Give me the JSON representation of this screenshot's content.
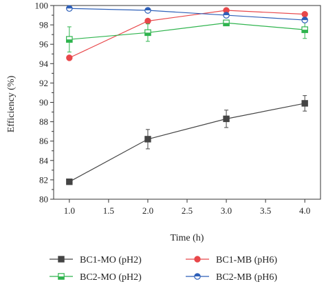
{
  "chart_data": {
    "type": "line",
    "xlabel": "Time (h)",
    "ylabel": "Efficiency (%)",
    "xlim": [
      0.8,
      4.2
    ],
    "ylim": [
      80,
      100
    ],
    "xticks": [
      1.0,
      1.5,
      2.0,
      2.5,
      3.0,
      3.5,
      4.0
    ],
    "yticks": [
      80,
      82,
      84,
      86,
      88,
      90,
      92,
      94,
      96,
      98,
      100
    ],
    "xtick_labels": [
      "1.0",
      "1.5",
      "2.0",
      "2.5",
      "3.0",
      "3.5",
      "4.0"
    ],
    "ytick_labels": [
      "80",
      "82",
      "84",
      "86",
      "88",
      "90",
      "92",
      "94",
      "96",
      "98",
      "100"
    ],
    "legend_position": "bottom",
    "series": [
      {
        "name": "BC1-MO (pH2)",
        "color": "#444444",
        "marker": "filled-square",
        "x": [
          1.0,
          2.0,
          3.0,
          4.0
        ],
        "y": [
          81.8,
          86.2,
          88.3,
          89.9
        ],
        "err": [
          0.0,
          1.0,
          0.9,
          0.8
        ]
      },
      {
        "name": "BC1-MB (pH6)",
        "color": "#e8474a",
        "marker": "filled-circle",
        "x": [
          1.0,
          2.0,
          3.0,
          4.0
        ],
        "y": [
          94.6,
          98.4,
          99.5,
          99.1
        ],
        "err": [
          0.0,
          0.0,
          0.0,
          0.0
        ]
      },
      {
        "name": "BC2-MO (pH2)",
        "color": "#2fb44e",
        "marker": "half-square",
        "x": [
          1.0,
          2.0,
          3.0,
          4.0
        ],
        "y": [
          96.5,
          97.2,
          98.2,
          97.5
        ],
        "err": [
          1.3,
          0.9,
          0.3,
          0.9
        ]
      },
      {
        "name": "BC2-MB (pH6)",
        "color": "#2d5fb8",
        "marker": "half-circle",
        "x": [
          1.0,
          2.0,
          3.0,
          4.0
        ],
        "y": [
          99.7,
          99.5,
          99.0,
          98.5
        ],
        "err": [
          0.0,
          0.0,
          0.0,
          0.0
        ]
      }
    ]
  }
}
